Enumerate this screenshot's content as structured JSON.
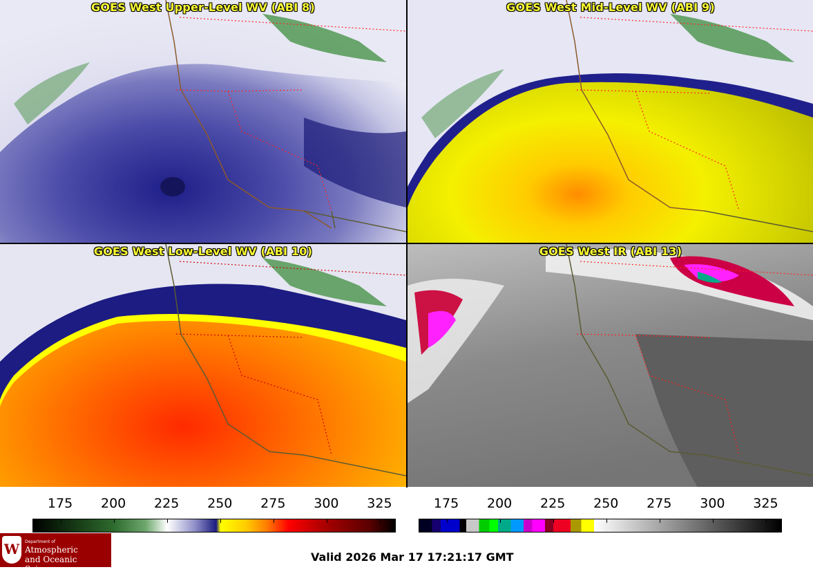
{
  "panels": [
    {
      "id": "p1",
      "title": "GOES West Upper-Level WV (ABI 8)",
      "scheme": "wv_upper"
    },
    {
      "id": "p2",
      "title": "GOES West Mid-Level WV (ABI 9)",
      "scheme": "wv_mid"
    },
    {
      "id": "p3",
      "title": "GOES West Low-Level WV (ABI 10)",
      "scheme": "wv_low"
    },
    {
      "id": "p4",
      "title": "GOES West IR (ABI 13)",
      "scheme": "ir"
    }
  ],
  "colorbars": [
    {
      "ticks": [
        "175",
        "200",
        "225",
        "250",
        "275",
        "300",
        "325"
      ],
      "tick_values": [
        175,
        200,
        225,
        250,
        275,
        300,
        325
      ],
      "range": [
        162,
        332
      ],
      "stops": [
        [
          162,
          "#000000"
        ],
        [
          175,
          "#0d260d"
        ],
        [
          200,
          "#2e6b2e"
        ],
        [
          215,
          "#6fa86f"
        ],
        [
          225,
          "#ffffff"
        ],
        [
          238,
          "#8f8fc8"
        ],
        [
          248,
          "#1c1c80"
        ],
        [
          250,
          "#ffff00"
        ],
        [
          262,
          "#ffcc00"
        ],
        [
          272,
          "#ff7a00"
        ],
        [
          282,
          "#ff0000"
        ],
        [
          300,
          "#a50000"
        ],
        [
          320,
          "#5a0000"
        ],
        [
          332,
          "#000000"
        ]
      ]
    },
    {
      "ticks": [
        "175",
        "200",
        "225",
        "250",
        "275",
        "300",
        "325"
      ],
      "tick_values": [
        175,
        200,
        225,
        250,
        275,
        300,
        325
      ],
      "range": [
        162,
        332
      ],
      "bands": [
        [
          162,
          168,
          "#000022"
        ],
        [
          168,
          172,
          "#160070"
        ],
        [
          172,
          181,
          "#0000cc"
        ],
        [
          181,
          184,
          "#000000"
        ],
        [
          184,
          190,
          "#c8c8c8"
        ],
        [
          190,
          195,
          "#00cc00"
        ],
        [
          195,
          199,
          "#00ff00"
        ],
        [
          199,
          205,
          "#00aa88"
        ],
        [
          205,
          211,
          "#0099ff"
        ],
        [
          211,
          215,
          "#cc00cc"
        ],
        [
          215,
          221,
          "#ff00ff"
        ],
        [
          221,
          225,
          "#880022"
        ],
        [
          225,
          233,
          "#ee0022"
        ],
        [
          233,
          238,
          "#aa9900"
        ],
        [
          238,
          244,
          "#ffff00"
        ]
      ],
      "gray_from": 244,
      "gray_to": 332
    }
  ],
  "footer": {
    "logo_dept": "Department of",
    "logo_line1": "Atmospheric",
    "logo_line2": "and Oceanic Sciences",
    "logo_letter": "W",
    "valid_text": "Valid 2026 Mar 17 17:21:17 GMT"
  }
}
